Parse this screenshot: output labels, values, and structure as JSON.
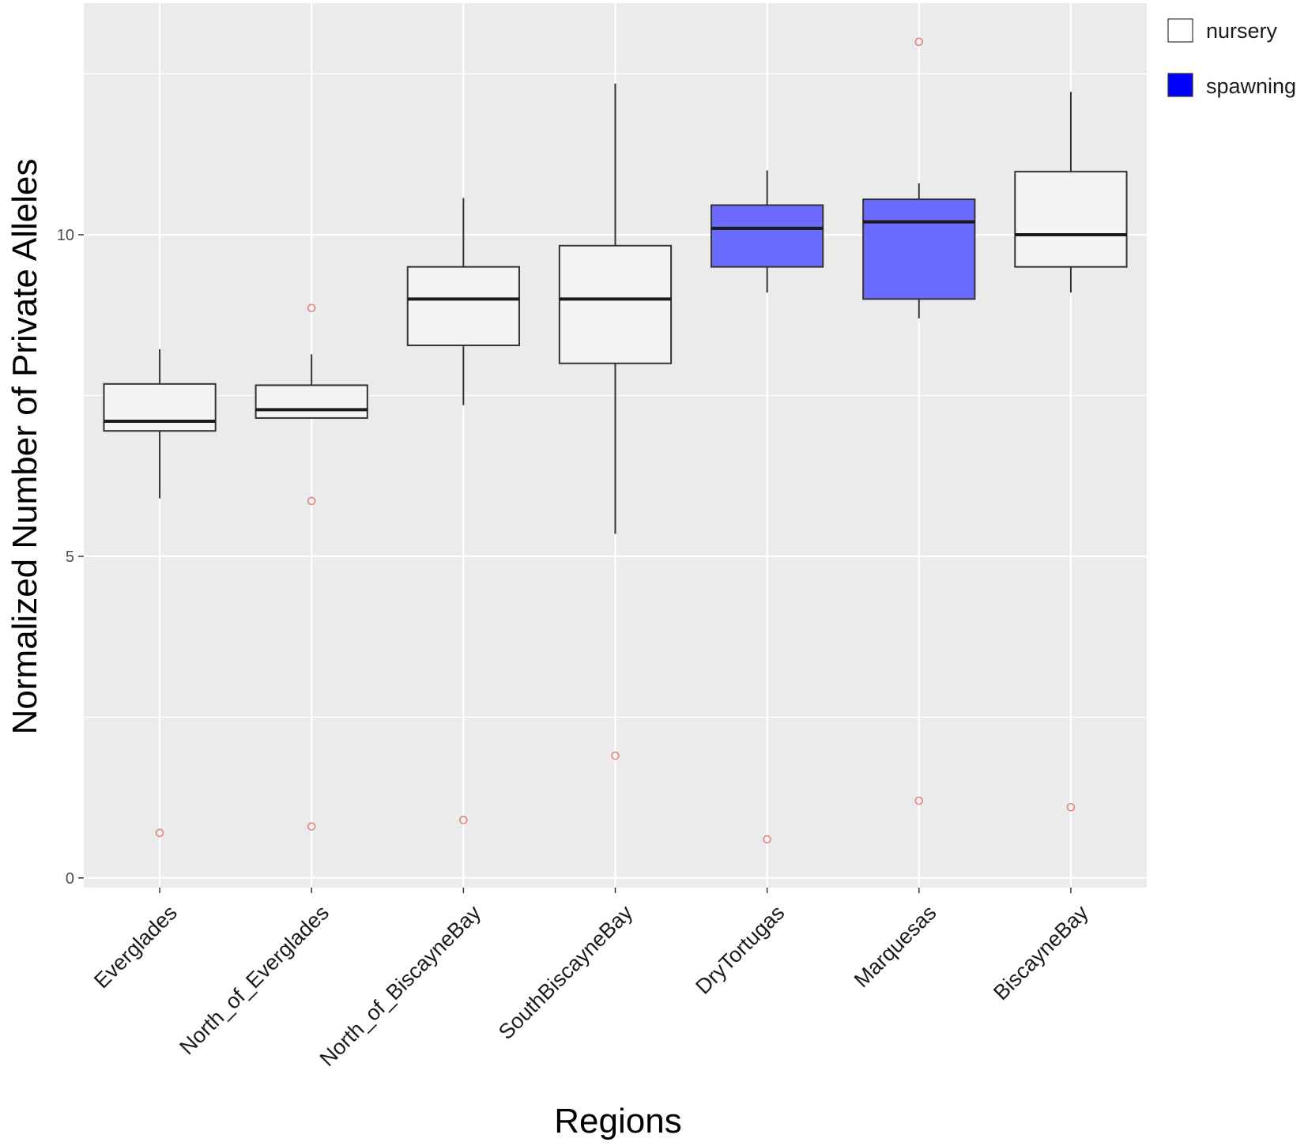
{
  "chart_data": {
    "type": "boxplot",
    "title": "",
    "xlabel": "Regions",
    "ylabel": "Normalized Number of Private Alleles",
    "ylim": [
      -0.15,
      13.6
    ],
    "yticks": [
      0,
      5,
      10
    ],
    "ytick_labels": [
      "0",
      "5",
      "10"
    ],
    "grid": true,
    "legend_position": "top-right",
    "colors": {
      "nursery": "#f4f4f4",
      "spawning": "#6b6bff",
      "legend_spawning": "#0000ff",
      "outlier": "#e8837a",
      "panel": "#ebebeb",
      "grid": "#ffffff"
    },
    "legend": [
      {
        "name": "nursery",
        "label": "nursery"
      },
      {
        "name": "spawning",
        "label": "spawning"
      }
    ],
    "categories": [
      "Everglades",
      "North_of_Everglades",
      "North_of_BiscayneBay",
      "SouthBiscayneBay",
      "DryTortugas",
      "Marquesas",
      "BiscayneBay"
    ],
    "boxes": [
      {
        "category": "Everglades",
        "group": "nursery",
        "whisker_low": 5.9,
        "q1": 6.95,
        "median": 7.1,
        "q3": 7.68,
        "whisker_high": 8.22,
        "outliers": [
          0.7
        ]
      },
      {
        "category": "North_of_Everglades",
        "group": "nursery",
        "whisker_low": 7.15,
        "q1": 7.15,
        "median": 7.28,
        "q3": 7.66,
        "whisker_high": 8.14,
        "outliers": [
          8.86,
          5.86,
          0.8
        ]
      },
      {
        "category": "North_of_BiscayneBay",
        "group": "nursery",
        "whisker_low": 7.35,
        "q1": 8.28,
        "median": 9.0,
        "q3": 9.5,
        "whisker_high": 10.57,
        "outliers": [
          0.9
        ]
      },
      {
        "category": "SouthBiscayneBay",
        "group": "nursery",
        "whisker_low": 5.35,
        "q1": 8.0,
        "median": 9.0,
        "q3": 9.83,
        "whisker_high": 12.35,
        "outliers": [
          1.9
        ]
      },
      {
        "category": "DryTortugas",
        "group": "spawning",
        "whisker_low": 9.1,
        "q1": 9.5,
        "median": 10.1,
        "q3": 10.46,
        "whisker_high": 11.0,
        "outliers": [
          0.6
        ]
      },
      {
        "category": "Marquesas",
        "group": "spawning",
        "whisker_low": 8.7,
        "q1": 9.0,
        "median": 10.2,
        "q3": 10.55,
        "whisker_high": 10.8,
        "outliers": [
          13.0,
          1.2
        ]
      },
      {
        "category": "BiscayneBay",
        "group": "nursery",
        "whisker_low": 9.1,
        "q1": 9.5,
        "median": 10.0,
        "q3": 10.98,
        "whisker_high": 12.22,
        "outliers": [
          1.1
        ]
      }
    ]
  }
}
